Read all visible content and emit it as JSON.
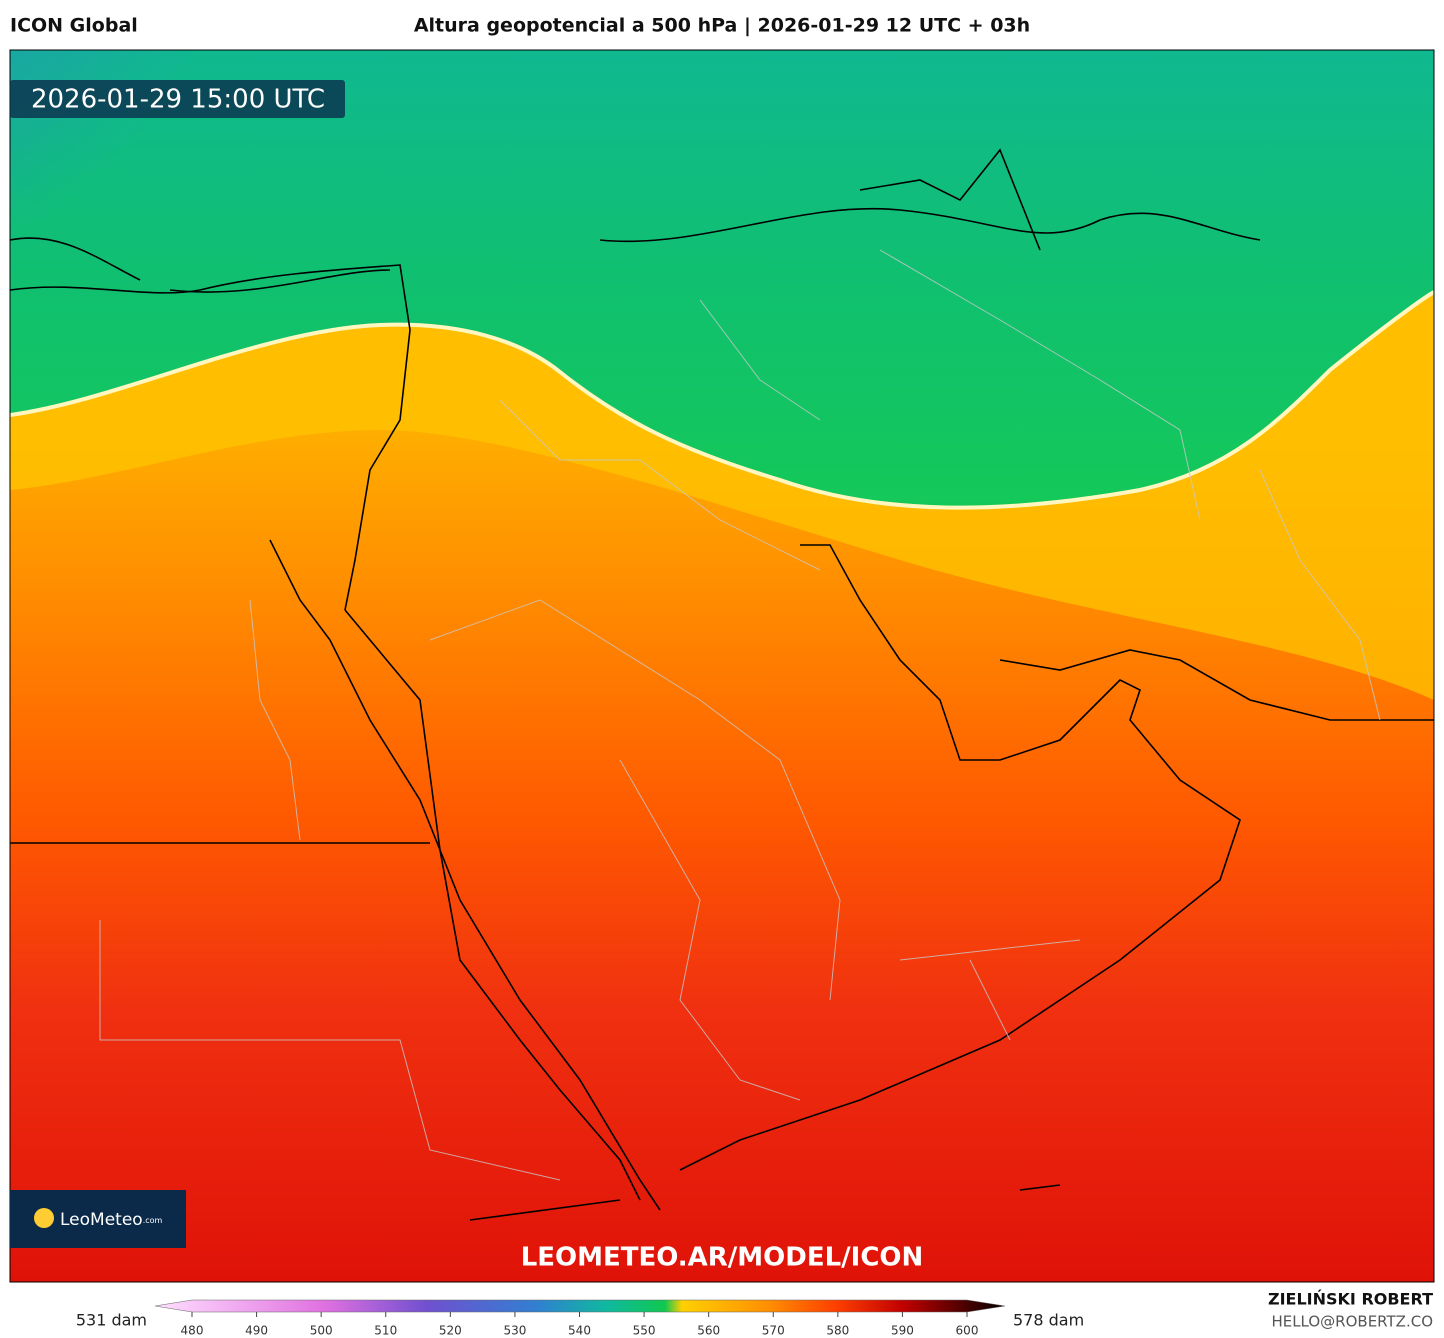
{
  "header": {
    "model": "ICON Global",
    "title": "Altura geopotencial a 500 hPa | 2026-01-29 12 UTC + 03h"
  },
  "map": {
    "valid_time": "2026-01-29 15:00 UTC",
    "logo": "LeoMeteo",
    "logo_suffix": ".com",
    "watermark": "LEOMETEO.AR/MODEL/ICON"
  },
  "colorbar": {
    "min_label": "531 dam",
    "max_label": "578 dam",
    "lim": [
      480,
      600
    ],
    "ticks": [
      480,
      490,
      500,
      510,
      520,
      530,
      540,
      550,
      560,
      570,
      580,
      590,
      600
    ]
  },
  "credits": {
    "author": "ZIELIŃSKI ROBERT",
    "email": "HELLO@ROBERTZ.CO"
  }
}
